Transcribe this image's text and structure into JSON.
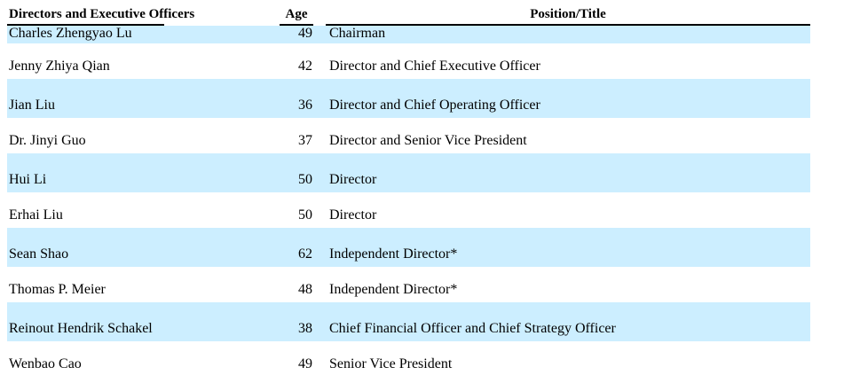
{
  "table": {
    "headers": {
      "directors": "Directors and Executive Officers",
      "age": "Age",
      "position": "Position/Title"
    },
    "rows": [
      {
        "name": "Charles Zhengyao Lu",
        "age": "49",
        "position": "Chairman",
        "highlighted": true
      },
      {
        "name": "Jenny Zhiya Qian",
        "age": "42",
        "position": "Director and Chief Executive Officer",
        "highlighted": false
      },
      {
        "name": "Jian Liu",
        "age": "36",
        "position": "Director and Chief Operating Officer",
        "highlighted": true
      },
      {
        "name": "Dr. Jinyi Guo",
        "age": "37",
        "position": "Director and Senior Vice President",
        "highlighted": false
      },
      {
        "name": "Hui Li",
        "age": "50",
        "position": "Director",
        "highlighted": true
      },
      {
        "name": "Erhai Liu",
        "age": "50",
        "position": "Director",
        "highlighted": false
      },
      {
        "name": "Sean Shao",
        "age": "62",
        "position": "Independent Director*",
        "highlighted": true
      },
      {
        "name": "Thomas P. Meier",
        "age": "48",
        "position": "Independent Director*",
        "highlighted": false
      },
      {
        "name": "Reinout Hendrik Schakel",
        "age": "38",
        "position": "Chief Financial Officer and Chief Strategy Officer",
        "highlighted": true
      },
      {
        "name": "Wenbao Cao",
        "age": "49",
        "position": "Senior Vice President",
        "highlighted": false
      }
    ],
    "colors": {
      "highlight": "#cceeff",
      "text": "#000000",
      "header_rule": "#000000"
    }
  }
}
